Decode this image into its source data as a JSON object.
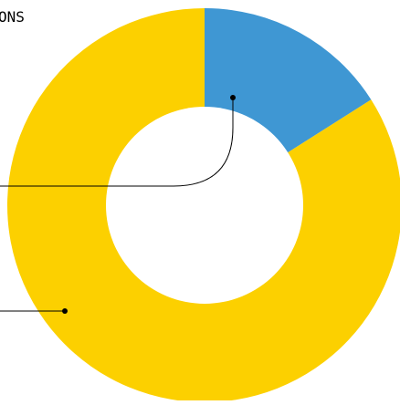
{
  "chart_data": {
    "type": "pie",
    "title": "ONS",
    "slices": [
      {
        "value": 16,
        "color": "#3f97d3"
      },
      {
        "value": 84,
        "color": "#fcd000"
      }
    ]
  }
}
